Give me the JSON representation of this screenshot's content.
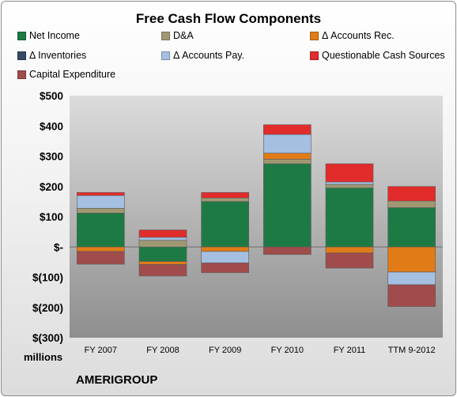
{
  "chart_data": {
    "type": "bar",
    "stacked": true,
    "title": "Free Cash Flow Components",
    "units_label": "millions",
    "footer_label": "AMERIGROUP",
    "categories": [
      "FY 2007",
      "FY 2008",
      "FY 2009",
      "FY 2010",
      "FY 2011",
      "TTM 9-2012"
    ],
    "ylim": [
      -300,
      500
    ],
    "y_ticks": [
      500,
      400,
      300,
      200,
      100,
      0,
      -100,
      -200,
      -300
    ],
    "y_tick_labels": [
      "$500",
      "$400",
      "$300",
      "$200",
      "$100",
      "$-",
      "$(100)",
      "$(200)",
      "$(300)"
    ],
    "legend_position": "top",
    "grid": false,
    "series": [
      {
        "name": "Net Income",
        "color": "#1e7a45",
        "values": [
          112,
          -48,
          150,
          275,
          195,
          130
        ]
      },
      {
        "name": "D&A",
        "color": "#a09872",
        "values": [
          16,
          22,
          12,
          15,
          12,
          22
        ]
      },
      {
        "name": "Δ Accounts Rec.",
        "color": "#e07b18",
        "values": [
          -15,
          -10,
          -15,
          20,
          -20,
          -83
        ]
      },
      {
        "name": "Δ Inventories",
        "color": "#344a66",
        "values": [
          0,
          0,
          0,
          0,
          0,
          0
        ]
      },
      {
        "name": "Δ Accounts Pay.",
        "color": "#a5bfe0",
        "values": [
          42,
          10,
          -38,
          62,
          8,
          -42
        ]
      },
      {
        "name": "Questionable Cash Sources",
        "color": "#e22b2b",
        "values": [
          10,
          24,
          18,
          32,
          60,
          48
        ]
      },
      {
        "name": "Capital Expenditure",
        "color": "#a04c4c",
        "values": [
          -42,
          -38,
          -32,
          -25,
          -50,
          -72
        ]
      }
    ],
    "plot_background_top": "#dcdcdc",
    "plot_background_bottom": "#8e8e8e"
  }
}
